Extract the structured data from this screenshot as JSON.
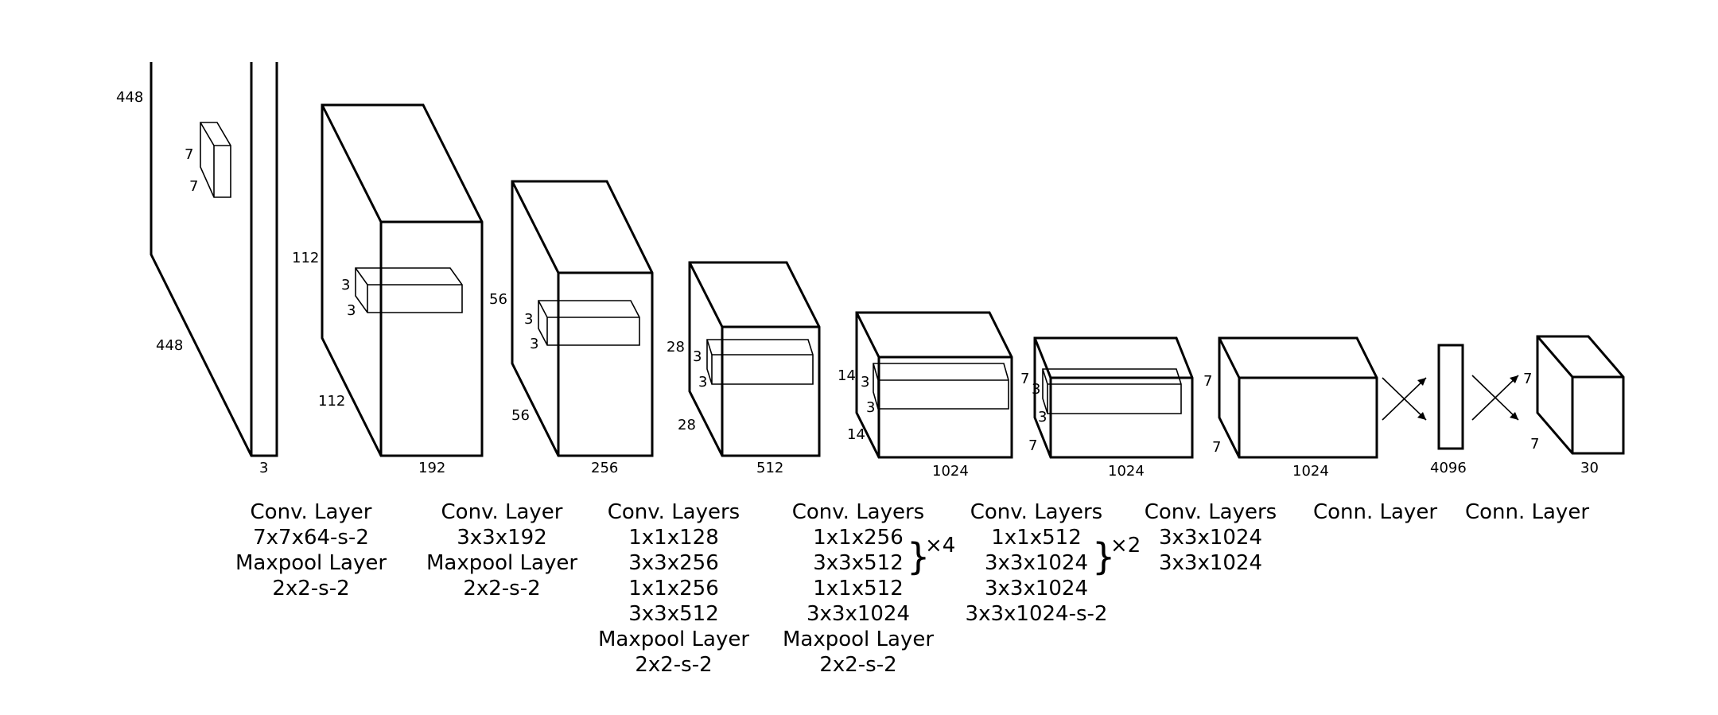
{
  "dims": {
    "input_h": "448",
    "input_w": "448",
    "input_c": "3",
    "kernel1_a": "7",
    "kernel1_b": "7",
    "b2_h": "112",
    "b2_w": "112",
    "b2_c": "192",
    "b2_k_a": "3",
    "b2_k_b": "3",
    "b3_h": "56",
    "b3_w": "56",
    "b3_c": "256",
    "b3_k_a": "3",
    "b3_k_b": "3",
    "b4_h": "28",
    "b4_w": "28",
    "b4_c": "512",
    "b4_k_a": "3",
    "b4_k_b": "3",
    "b5_h": "14",
    "b5_w": "14",
    "b5_c": "1024",
    "b5_k_a": "3",
    "b5_k_b": "3",
    "b6_h": "7",
    "b6_w": "7",
    "b6_c": "1024",
    "b6_k_a": "3",
    "b6_k_b": "3",
    "b7_h": "7",
    "b7_w": "7",
    "b7_c": "1024",
    "fc_c": "4096",
    "out_h": "7",
    "out_w": "7",
    "out_c": "30"
  },
  "captions": {
    "c1": [
      "Conv. Layer",
      "7x7x64-s-2",
      "Maxpool Layer",
      "2x2-s-2"
    ],
    "c2": [
      "Conv. Layer",
      "3x3x192",
      "Maxpool Layer",
      "2x2-s-2"
    ],
    "c3": [
      "Conv. Layers",
      "1x1x128",
      "3x3x256",
      "1x1x256",
      "3x3x512",
      "Maxpool Layer",
      "2x2-s-2"
    ],
    "c4": [
      "Conv. Layers",
      "1x1x256",
      "3x3x512",
      "1x1x512",
      "3x3x1024",
      "Maxpool Layer",
      "2x2-s-2"
    ],
    "c4_repeat": "×4",
    "c5": [
      "Conv. Layers",
      "1x1x512",
      "3x3x1024",
      "3x3x1024",
      "3x3x1024-s-2"
    ],
    "c5_repeat": "×2",
    "c6": [
      "Conv. Layers",
      "3x3x1024",
      "3x3x1024"
    ],
    "c7": [
      "Conn. Layer"
    ],
    "c8": [
      "Conn. Layer"
    ]
  }
}
